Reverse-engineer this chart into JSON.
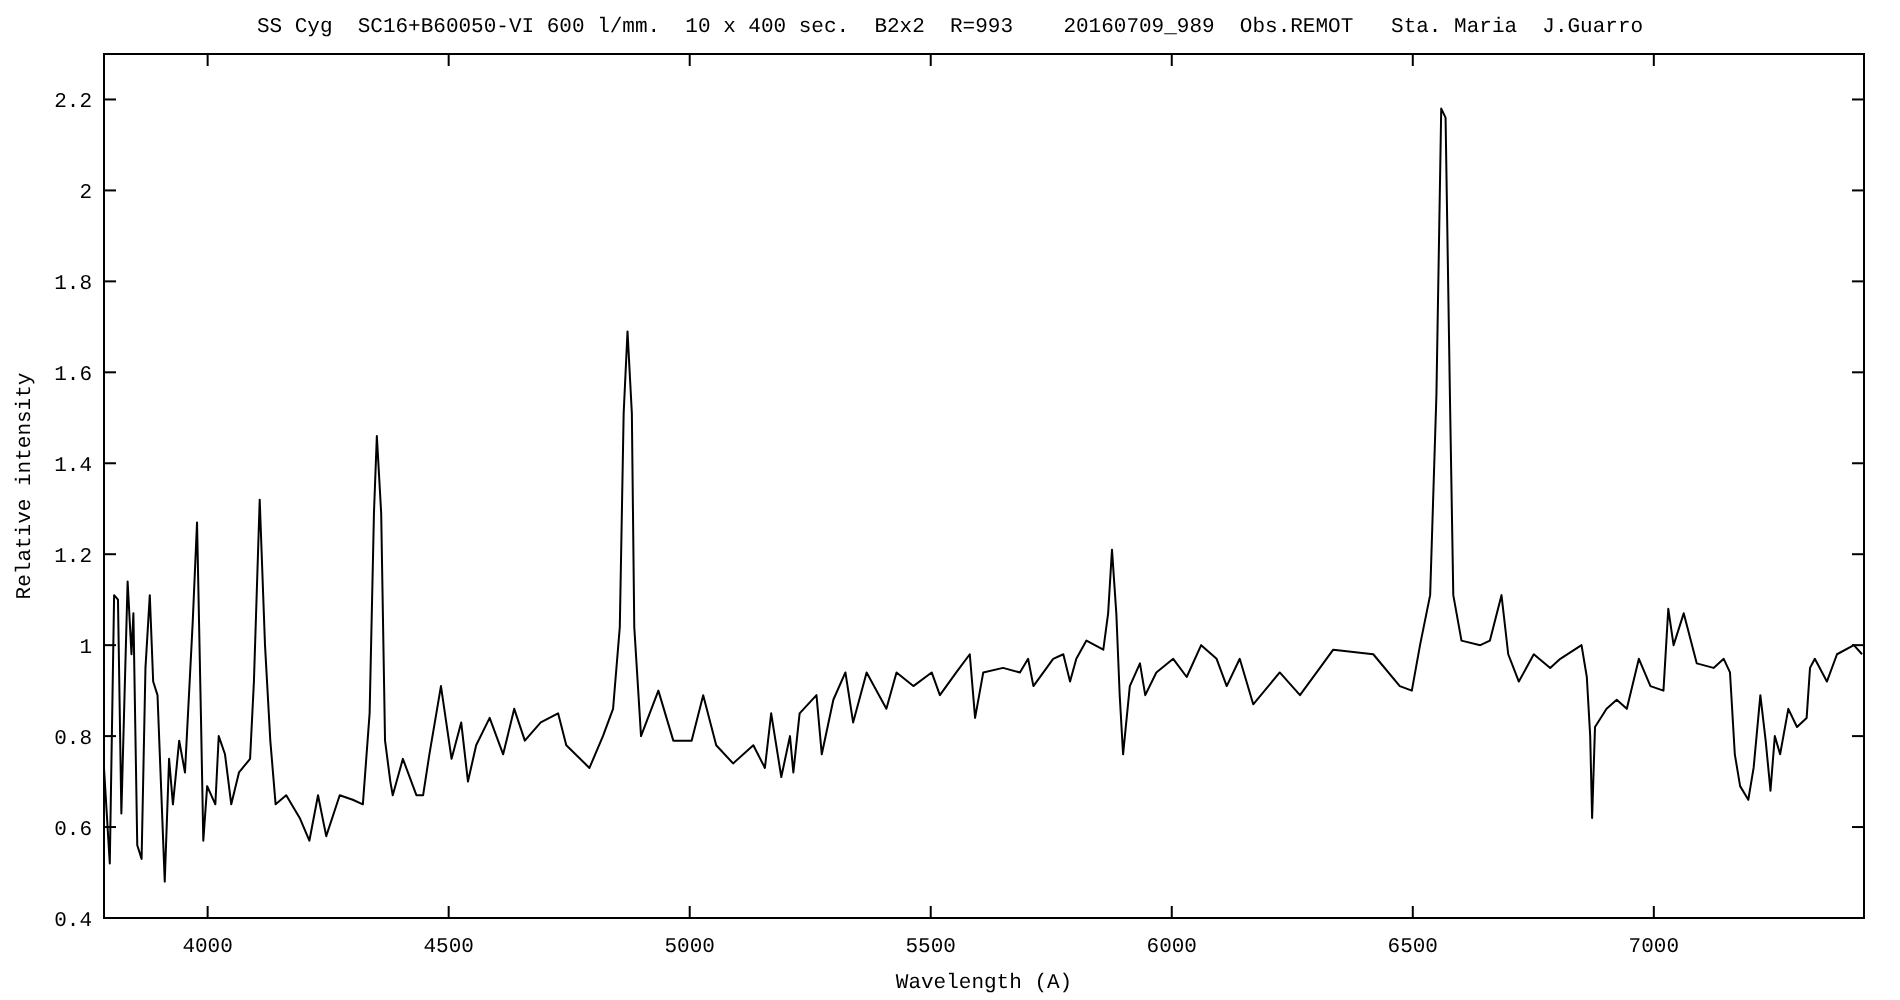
{
  "chart_data": {
    "type": "line",
    "title": "SS Cyg  SC16+B60050-VI 600 l/mm.  10 x 400 sec.  B2x2  R=993    20160709_989  Obs.REMOT   Sta. Maria  J.Guarro",
    "xlabel": "Wavelength (A)",
    "ylabel": "Relative intensity",
    "xlim": [
      3785,
      7436
    ],
    "ylim": [
      0.4,
      2.3
    ],
    "xticks": [
      4000,
      4500,
      5000,
      5500,
      6000,
      6500,
      7000
    ],
    "yticks": [
      0.4,
      0.6,
      0.8,
      1,
      1.2,
      1.4,
      1.6,
      1.8,
      2,
      2.2
    ],
    "grid": false,
    "marker": "none",
    "line_style": "solid",
    "series": [
      {
        "color": "#000000",
        "x": [
          3785,
          3797,
          3806,
          3814,
          3821,
          3834,
          3842,
          3846,
          3854,
          3863,
          3871,
          3880,
          3887,
          3896,
          3911,
          3920,
          3928,
          3941,
          3953,
          3969,
          3978,
          3986,
          3991,
          3999,
          4016,
          4023,
          4036,
          4049,
          4065,
          4088,
          4096,
          4108,
          4119,
          4130,
          4141,
          4163,
          4191,
          4211,
          4229,
          4246,
          4274,
          4301,
          4322,
          4336,
          4345,
          4351,
          4360,
          4368,
          4379,
          4384,
          4405,
          4433,
          4447,
          4460,
          4484,
          4506,
          4526,
          4540,
          4557,
          4585,
          4613,
          4636,
          4658,
          4691,
          4727,
          4744,
          4792,
          4820,
          4841,
          4855,
          4863,
          4871,
          4880,
          4885,
          4899,
          4935,
          4966,
          5004,
          5028,
          5055,
          5090,
          5132,
          5156,
          5169,
          5190,
          5208,
          5215,
          5228,
          5263,
          5274,
          5298,
          5323,
          5339,
          5367,
          5408,
          5429,
          5464,
          5502,
          5519,
          5553,
          5581,
          5592,
          5609,
          5650,
          5685,
          5702,
          5713,
          5754,
          5775,
          5789,
          5802,
          5823,
          5858,
          5868,
          5876,
          5885,
          5892,
          5899,
          5913,
          5934,
          5945,
          5968,
          6003,
          6031,
          6061,
          6093,
          6114,
          6141,
          6169,
          6224,
          6266,
          6335,
          6418,
          6473,
          6498,
          6515,
          6536,
          6549,
          6559,
          6568,
          6577,
          6584,
          6601,
          6640,
          6660,
          6684,
          6698,
          6720,
          6751,
          6785,
          6806,
          6850,
          6861,
          6868,
          6872,
          6878,
          6902,
          6923,
          6944,
          6969,
          6993,
          7020,
          7030,
          7041,
          7062,
          7089,
          7124,
          7145,
          7158,
          7168,
          7179,
          7196,
          7207,
          7221,
          7232,
          7242,
          7251,
          7262,
          7279,
          7297,
          7317,
          7324,
          7334,
          7359,
          7380,
          7415,
          7432
        ],
        "values": [
          0.73,
          0.52,
          1.11,
          1.1,
          0.63,
          1.14,
          0.98,
          1.07,
          0.56,
          0.53,
          0.95,
          1.11,
          0.92,
          0.89,
          0.48,
          0.75,
          0.65,
          0.79,
          0.72,
          1.05,
          1.27,
          0.85,
          0.57,
          0.69,
          0.65,
          0.8,
          0.76,
          0.65,
          0.72,
          0.75,
          0.92,
          1.32,
          1.0,
          0.79,
          0.65,
          0.67,
          0.62,
          0.57,
          0.67,
          0.58,
          0.67,
          0.66,
          0.65,
          0.85,
          1.29,
          1.46,
          1.29,
          0.79,
          0.7,
          0.67,
          0.75,
          0.67,
          0.67,
          0.76,
          0.91,
          0.75,
          0.83,
          0.7,
          0.78,
          0.84,
          0.76,
          0.86,
          0.79,
          0.83,
          0.85,
          0.78,
          0.73,
          0.8,
          0.86,
          1.04,
          1.51,
          1.69,
          1.51,
          1.04,
          0.8,
          0.9,
          0.79,
          0.79,
          0.89,
          0.78,
          0.74,
          0.78,
          0.73,
          0.85,
          0.71,
          0.8,
          0.72,
          0.85,
          0.89,
          0.76,
          0.88,
          0.94,
          0.83,
          0.94,
          0.86,
          0.94,
          0.91,
          0.94,
          0.89,
          0.94,
          0.98,
          0.84,
          0.94,
          0.95,
          0.94,
          0.97,
          0.91,
          0.97,
          0.98,
          0.92,
          0.97,
          1.01,
          0.99,
          1.07,
          1.21,
          1.07,
          0.89,
          0.76,
          0.91,
          0.96,
          0.89,
          0.94,
          0.97,
          0.93,
          1.0,
          0.97,
          0.91,
          0.97,
          0.87,
          0.94,
          0.89,
          0.99,
          0.98,
          0.91,
          0.9,
          1.0,
          1.11,
          1.55,
          2.18,
          2.16,
          1.55,
          1.11,
          1.01,
          1.0,
          1.01,
          1.11,
          0.98,
          0.92,
          0.98,
          0.95,
          0.97,
          1.0,
          0.93,
          0.8,
          0.62,
          0.82,
          0.86,
          0.88,
          0.86,
          0.97,
          0.91,
          0.9,
          1.08,
          1.0,
          1.07,
          0.96,
          0.95,
          0.97,
          0.94,
          0.76,
          0.69,
          0.66,
          0.73,
          0.89,
          0.79,
          0.68,
          0.8,
          0.76,
          0.86,
          0.82,
          0.84,
          0.95,
          0.97,
          0.92,
          0.98,
          1.0,
          0.98
        ]
      }
    ]
  }
}
